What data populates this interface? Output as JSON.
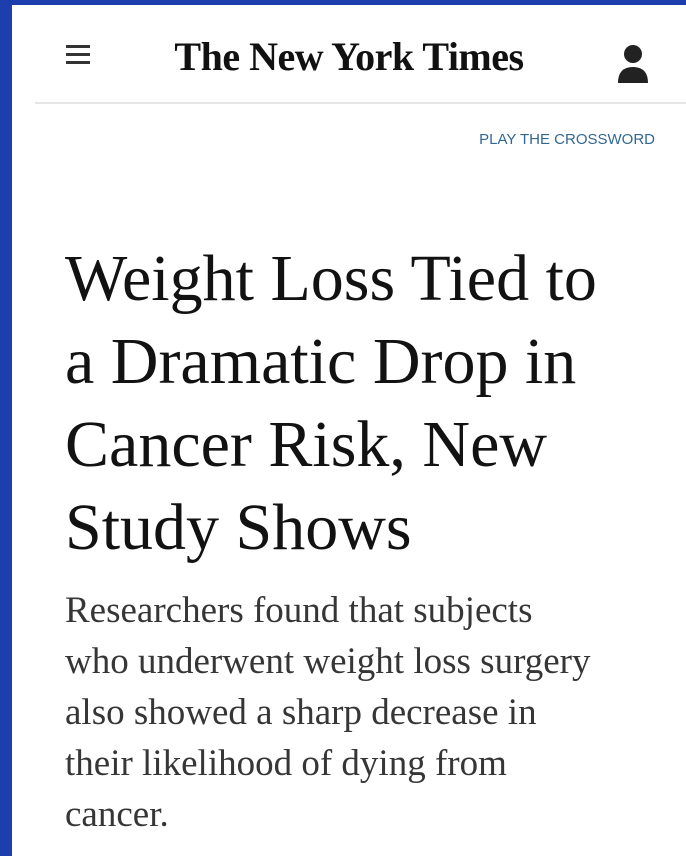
{
  "header": {
    "logo": "The New York Times",
    "link": "PLAY THE CROSSWORD"
  },
  "article": {
    "headline_lines": [
      "Weight Loss Tied to",
      "a Dramatic Drop in",
      "Cancer Risk, New",
      "Study Shows"
    ],
    "summary_lines": [
      "Researchers found that subjects",
      "who underwent weight loss surgery",
      "also showed a sharp decrease in",
      "their likelihood of dying from",
      "cancer."
    ]
  }
}
